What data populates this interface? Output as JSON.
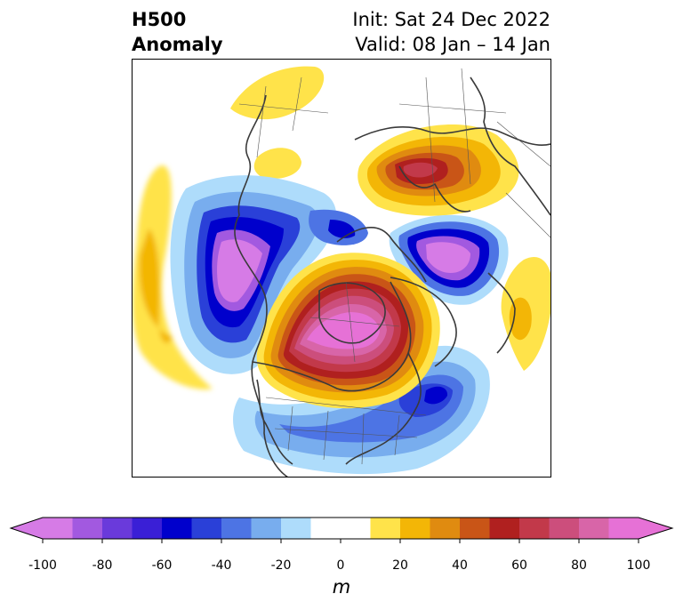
{
  "title": {
    "field": "H500",
    "kind": "Anomaly",
    "init": "Init: Sat 24 Dec 2022",
    "valid": "Valid: 08 Jan – 14 Jan"
  },
  "colorbar": {
    "unit": "m",
    "ticks": [
      "-100",
      "-80",
      "-60",
      "-40",
      "-20",
      "0",
      "20",
      "40",
      "60",
      "80",
      "100"
    ],
    "levels": [
      {
        "range": [
          -100,
          -90
        ],
        "color": "#d67be6"
      },
      {
        "range": [
          -90,
          -80
        ],
        "color": "#a259e0"
      },
      {
        "range": [
          -80,
          -70
        ],
        "color": "#6a3adb"
      },
      {
        "range": [
          -70,
          -60
        ],
        "color": "#3a1fd6"
      },
      {
        "range": [
          -60,
          -50
        ],
        "color": "#0000cc"
      },
      {
        "range": [
          -50,
          -40
        ],
        "color": "#2a40d8"
      },
      {
        "range": [
          -40,
          -30
        ],
        "color": "#4d74e4"
      },
      {
        "range": [
          -30,
          -20
        ],
        "color": "#78adee"
      },
      {
        "range": [
          -20,
          -10
        ],
        "color": "#aedcfb"
      },
      {
        "range": [
          -10,
          10
        ],
        "color": "#ffffff"
      },
      {
        "range": [
          10,
          20
        ],
        "color": "#ffe34a"
      },
      {
        "range": [
          20,
          30
        ],
        "color": "#f3b606"
      },
      {
        "range": [
          30,
          40
        ],
        "color": "#e08b10"
      },
      {
        "range": [
          40,
          50
        ],
        "color": "#c95517"
      },
      {
        "range": [
          50,
          60
        ],
        "color": "#b0201f"
      },
      {
        "range": [
          60,
          70
        ],
        "color": "#c2394a"
      },
      {
        "range": [
          70,
          80
        ],
        "color": "#cc4e7c"
      },
      {
        "range": [
          80,
          90
        ],
        "color": "#d865a8"
      },
      {
        "range": [
          90,
          100
        ],
        "color": "#e671d6"
      }
    ],
    "extend": "both"
  }
}
